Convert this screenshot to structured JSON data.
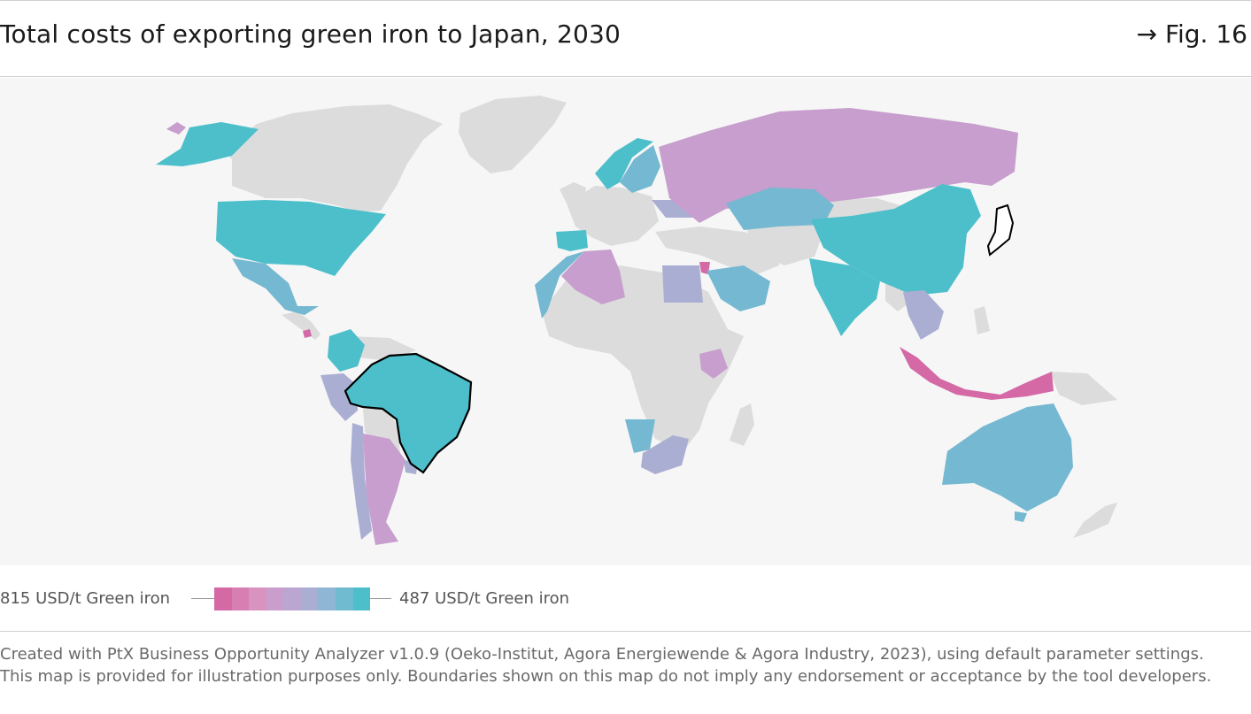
{
  "header": {
    "title": "Total costs of exporting green iron to Japan, 2030",
    "figure_ref": "→ Fig. 16"
  },
  "legend": {
    "min_label": "815 USD/t Green iron",
    "max_label": "487 USD/t Green iron",
    "min_value": 815,
    "max_value": 487,
    "unit": "USD/t Green iron",
    "gradient": [
      "#d469a6",
      "#d77fb2",
      "#d894bf",
      "#c99ecc",
      "#bba5d1",
      "#aaaed3",
      "#8fb6d4",
      "#70bbd0",
      "#4cbfcb"
    ]
  },
  "map": {
    "colors": {
      "no_data": "#dcdcdc",
      "ocean": "#f6f6f6",
      "high_cost": "#d469a6",
      "mid_high": "#c79ecd",
      "mid": "#aaaed3",
      "mid_low": "#75b8d1",
      "low_cost": "#4cbfcb",
      "outline": "#000000"
    },
    "highlighted": [
      "Japan",
      "Brazil"
    ],
    "countries": [
      {
        "name": "United States",
        "level": "low_cost"
      },
      {
        "name": "Alaska",
        "level": "low_cost"
      },
      {
        "name": "Mexico",
        "level": "mid_low"
      },
      {
        "name": "Colombia",
        "level": "low_cost"
      },
      {
        "name": "Brazil",
        "level": "low_cost"
      },
      {
        "name": "Peru",
        "level": "mid"
      },
      {
        "name": "Chile",
        "level": "mid"
      },
      {
        "name": "Argentina",
        "level": "mid_high"
      },
      {
        "name": "Uruguay",
        "level": "mid"
      },
      {
        "name": "Costa Rica",
        "level": "high_cost"
      },
      {
        "name": "Norway",
        "level": "low_cost"
      },
      {
        "name": "Sweden",
        "level": "mid_low"
      },
      {
        "name": "Finland",
        "level": "mid_low"
      },
      {
        "name": "Spain",
        "level": "low_cost"
      },
      {
        "name": "Ukraine",
        "level": "mid"
      },
      {
        "name": "Russia",
        "level": "mid_high"
      },
      {
        "name": "Kazakhstan",
        "level": "mid_low"
      },
      {
        "name": "China",
        "level": "low_cost"
      },
      {
        "name": "India",
        "level": "low_cost"
      },
      {
        "name": "Morocco",
        "level": "mid_low"
      },
      {
        "name": "Algeria",
        "level": "mid_high"
      },
      {
        "name": "Egypt",
        "level": "mid"
      },
      {
        "name": "Jordan",
        "level": "high_cost"
      },
      {
        "name": "Saudi Arabia",
        "level": "mid_low"
      },
      {
        "name": "Kenya",
        "level": "mid_high"
      },
      {
        "name": "Namibia",
        "level": "mid_low"
      },
      {
        "name": "South Africa",
        "level": "mid"
      },
      {
        "name": "Vietnam",
        "level": "mid"
      },
      {
        "name": "Indonesia",
        "level": "high_cost"
      },
      {
        "name": "Australia",
        "level": "mid_low"
      },
      {
        "name": "Japan",
        "level": "destination"
      }
    ]
  },
  "footer": {
    "note": "Created with PtX Business Opportunity Analyzer v1.0.9 (Oeko-Institut, Agora Energiewende & Agora Industry, 2023), using default parameter settings. This map is provided for illustration purposes only. Boundaries shown on this map do not imply any endorsement or acceptance by the tool developers."
  }
}
